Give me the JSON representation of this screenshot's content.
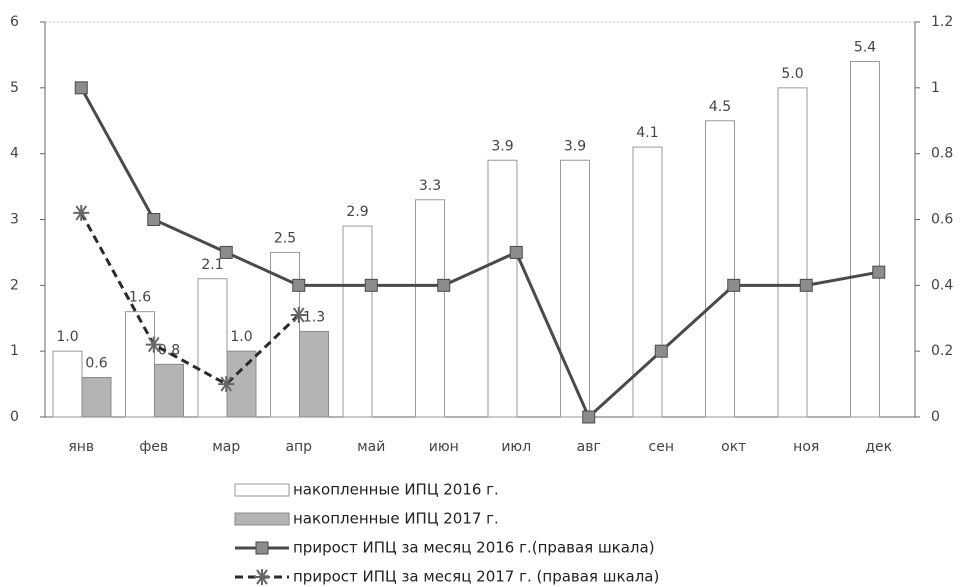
{
  "chart_data": {
    "type": "bar",
    "categories": [
      "янв",
      "фев",
      "мар",
      "апр",
      "май",
      "июн",
      "июл",
      "авг",
      "сен",
      "окт",
      "ноя",
      "дек"
    ],
    "series": [
      {
        "name": "накопленные ИПЦ 2016 г.",
        "type": "bar",
        "color": "#ffffff",
        "border": "#9a9a9a",
        "values": [
          1.0,
          1.6,
          2.1,
          2.5,
          2.9,
          3.3,
          3.9,
          3.9,
          4.1,
          4.5,
          5.0,
          5.4
        ],
        "value_labels": [
          "1.0",
          "1.6",
          "2.1",
          "2.5",
          "2.9",
          "3.3",
          "3.9",
          "3.9",
          "4.1",
          "4.5",
          "5.0",
          "5.4"
        ]
      },
      {
        "name": "накопленные ИПЦ 2017 г.",
        "type": "bar",
        "color": "#b4b4b4",
        "border": "#8a8a8a",
        "values": [
          0.6,
          0.8,
          1.0,
          1.3,
          null,
          null,
          null,
          null,
          null,
          null,
          null,
          null
        ],
        "value_labels": [
          "0.6",
          "0.8",
          "1.0",
          "1.3",
          null,
          null,
          null,
          null,
          null,
          null,
          null,
          null
        ]
      },
      {
        "name": "прирост ИПЦ за месяц 2016 г.(правая шкала)",
        "type": "line",
        "axis": "y2",
        "color": "#4a4a4a",
        "marker_color": "#8c8c8c",
        "marker": "square",
        "dashed": false,
        "values": [
          1.0,
          0.6,
          0.5,
          0.4,
          0.4,
          0.4,
          0.5,
          0.0,
          0.2,
          0.4,
          0.4,
          0.44
        ]
      },
      {
        "name": "прирост ИПЦ за месяц 2017 г. (правая шкала)",
        "type": "line",
        "axis": "y2",
        "color": "#2a2a2a",
        "marker_color": "#666666",
        "marker": "star",
        "dashed": true,
        "values": [
          0.62,
          0.22,
          0.1,
          0.31,
          null,
          null,
          null,
          null,
          null,
          null,
          null,
          null
        ]
      }
    ],
    "ylim": [
      0,
      6
    ],
    "yticks": [
      0,
      1,
      2,
      3,
      4,
      5,
      6
    ],
    "y2lim": [
      0,
      1.2
    ],
    "y2ticks": [
      0,
      0.2,
      0.4,
      0.6,
      0.8,
      1,
      1.2
    ],
    "grid": false
  }
}
